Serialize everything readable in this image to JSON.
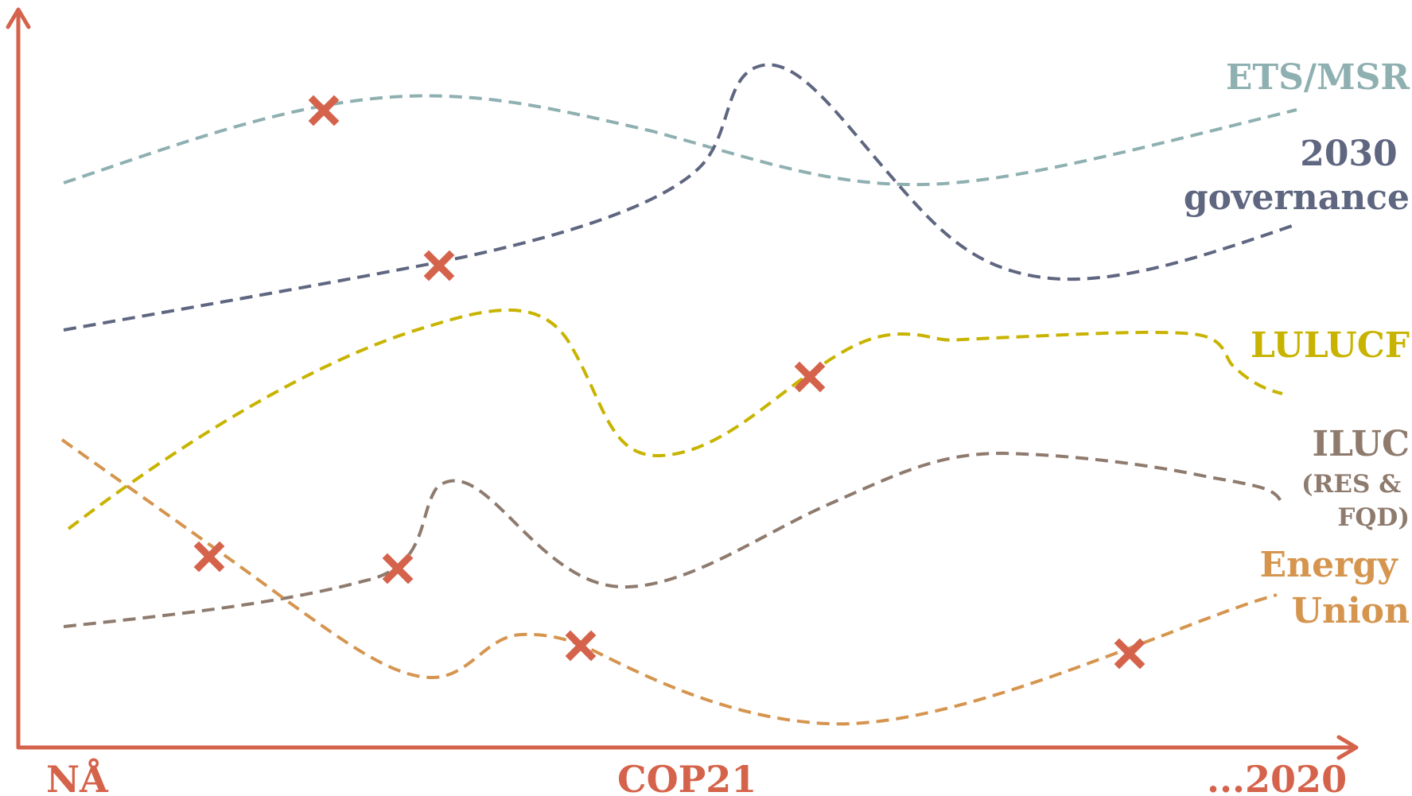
{
  "colors": {
    "axis": "#d5634b",
    "marker": "#d5634b",
    "ets": "#8fb0b1",
    "governance": "#5f6680",
    "lulucf": "#c8b400",
    "iluc": "#8e7b6e",
    "energy": "#d5954f"
  },
  "axis": {
    "labels": [
      "NÅ",
      "COP21",
      "...2020"
    ]
  },
  "series": [
    {
      "id": "ets",
      "label_lines": [
        "ETS/MSR"
      ],
      "color_key": "ets"
    },
    {
      "id": "governance",
      "label_lines": [
        "2030",
        "governance"
      ],
      "color_key": "governance"
    },
    {
      "id": "lulucf",
      "label_lines": [
        "LULUCF"
      ],
      "color_key": "lulucf"
    },
    {
      "id": "iluc",
      "label_lines": [
        "ILUC",
        "(RES &",
        "FQD)"
      ],
      "color_key": "iluc"
    },
    {
      "id": "energy",
      "label_lines": [
        "Energy",
        "Union"
      ],
      "color_key": "energy"
    }
  ],
  "markers": {
    "icon": "cross-marker-icon",
    "count": 7
  }
}
